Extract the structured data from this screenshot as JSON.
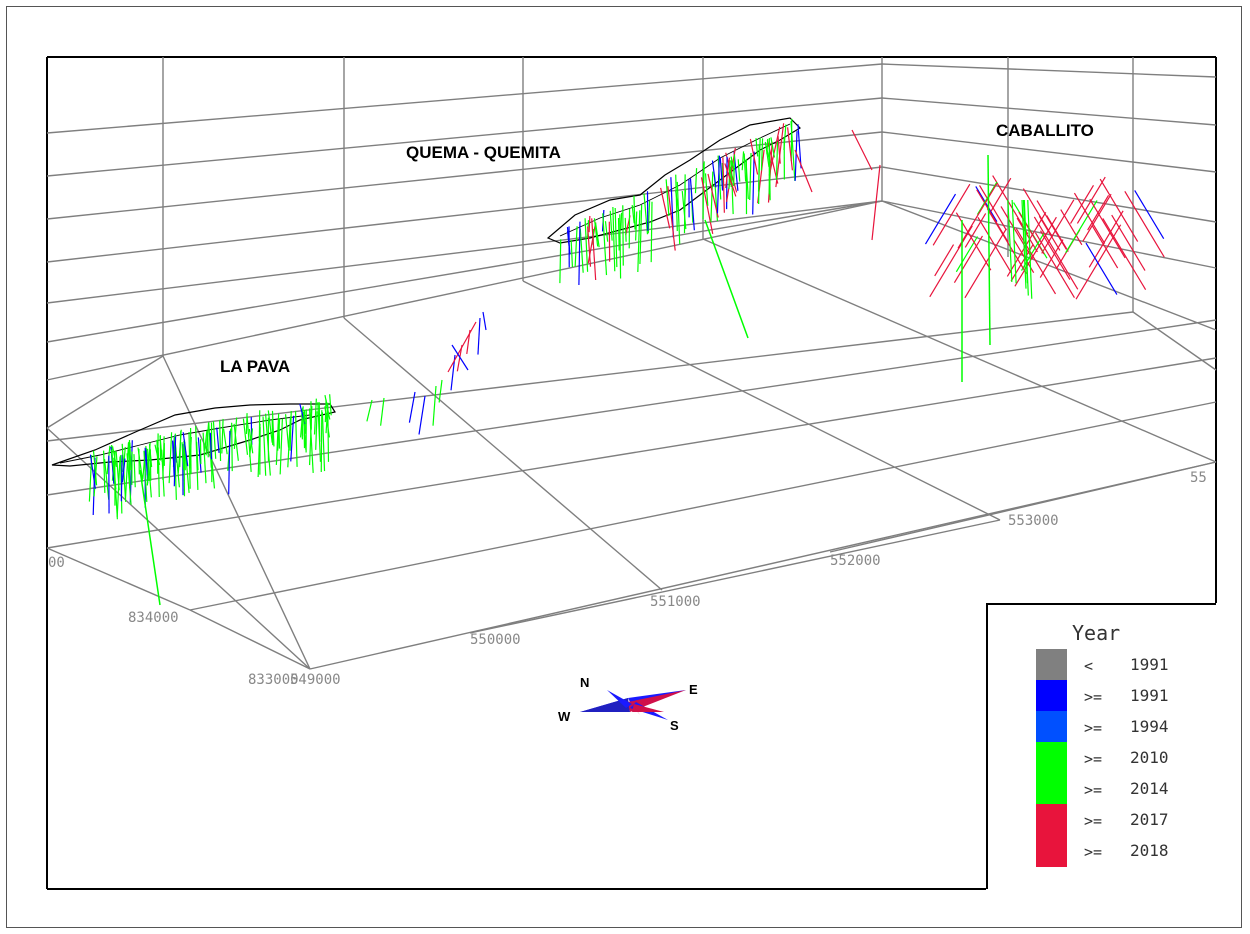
{
  "deposits": [
    {
      "name": "LA PAVA"
    },
    {
      "name": "QUEMA - QUEMITA"
    },
    {
      "name": "CABALLITO"
    }
  ],
  "axes": {
    "easting_labels": [
      "549000",
      "550000",
      "551000",
      "552000",
      "553000",
      "55"
    ],
    "northing_labels": [
      "833000",
      "834000",
      "00"
    ]
  },
  "compass": {
    "north": "N",
    "east": "E",
    "south": "S",
    "west": "W"
  },
  "legend": {
    "title": "Year",
    "items": [
      {
        "op": "<",
        "value": "1991",
        "color": "#808080"
      },
      {
        "op": ">=",
        "value": "1991",
        "color": "#0000ff"
      },
      {
        "op": ">=",
        "value": "1994",
        "color": "#0050ff"
      },
      {
        "op": ">=",
        "value": "2010",
        "color": "#00ff00"
      },
      {
        "op": ">=",
        "value": "2014",
        "color": "#00ff00"
      },
      {
        "op": ">=",
        "value": "2017",
        "color": "#e8143c"
      },
      {
        "op": ">=",
        "value": "2018",
        "color": "#e8143c"
      }
    ]
  },
  "colors": {
    "grid": "#7f7f7f",
    "frame": "#000000",
    "outline": "#000000",
    "green": "#00ff00",
    "blue": "#0000ff",
    "red": "#e8143c"
  }
}
